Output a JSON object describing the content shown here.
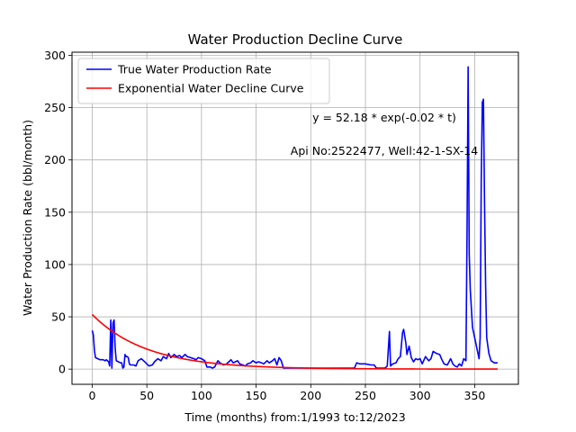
{
  "chart_data": {
    "type": "line",
    "title": "Water Production Decline Curve",
    "xlabel": "Time (months) from:1/1993 to:12/2023",
    "ylabel": "Water Production Rate (bbl/month)",
    "xlim": [
      -18.5,
      390
    ],
    "ylim": [
      -14.5,
      303
    ],
    "xticks": [
      0,
      50,
      100,
      150,
      200,
      250,
      300,
      350
    ],
    "yticks": [
      0,
      50,
      100,
      150,
      200,
      250,
      300
    ],
    "grid": true,
    "legend_position": "top-left",
    "annotations": [
      "y = 52.18 * exp(-0.02 * t)",
      "Api No:2522477, Well:42-1-SX-14"
    ],
    "series": [
      {
        "name": "True Water Production Rate",
        "color": "#0000ff",
        "points": [
          [
            0,
            37
          ],
          [
            1,
            33
          ],
          [
            2,
            18
          ],
          [
            3,
            11
          ],
          [
            5,
            10
          ],
          [
            7,
            9
          ],
          [
            10,
            9
          ],
          [
            12,
            8
          ],
          [
            13,
            9
          ],
          [
            15,
            7
          ],
          [
            16,
            3
          ],
          [
            17,
            47
          ],
          [
            18,
            1
          ],
          [
            19,
            44
          ],
          [
            20,
            47
          ],
          [
            21,
            20
          ],
          [
            22,
            8
          ],
          [
            24,
            7
          ],
          [
            26,
            6
          ],
          [
            27,
            6
          ],
          [
            28,
            1
          ],
          [
            29,
            2
          ],
          [
            30,
            14
          ],
          [
            31,
            12
          ],
          [
            32,
            12
          ],
          [
            33,
            11
          ],
          [
            34,
            5
          ],
          [
            35,
            4
          ],
          [
            38,
            4
          ],
          [
            40,
            3
          ],
          [
            42,
            8
          ],
          [
            45,
            10
          ],
          [
            47,
            8
          ],
          [
            50,
            5
          ],
          [
            52,
            3
          ],
          [
            55,
            4
          ],
          [
            57,
            7
          ],
          [
            60,
            10
          ],
          [
            63,
            8
          ],
          [
            65,
            12
          ],
          [
            68,
            10
          ],
          [
            70,
            15
          ],
          [
            72,
            11
          ],
          [
            75,
            14
          ],
          [
            77,
            12
          ],
          [
            80,
            13
          ],
          [
            82,
            11
          ],
          [
            85,
            14
          ],
          [
            87,
            12
          ],
          [
            90,
            11
          ],
          [
            93,
            10
          ],
          [
            95,
            9
          ],
          [
            97,
            11
          ],
          [
            100,
            10
          ],
          [
            103,
            8
          ],
          [
            105,
            2
          ],
          [
            108,
            2
          ],
          [
            110,
            1
          ],
          [
            112,
            2
          ],
          [
            115,
            8
          ],
          [
            117,
            6
          ],
          [
            120,
            4
          ],
          [
            123,
            5
          ],
          [
            125,
            7
          ],
          [
            127,
            9
          ],
          [
            129,
            6
          ],
          [
            131,
            7
          ],
          [
            133,
            8
          ],
          [
            135,
            5
          ],
          [
            138,
            4
          ],
          [
            140,
            3
          ],
          [
            142,
            5
          ],
          [
            145,
            6
          ],
          [
            147,
            8
          ],
          [
            150,
            6
          ],
          [
            152,
            7
          ],
          [
            155,
            6
          ],
          [
            157,
            5
          ],
          [
            160,
            8
          ],
          [
            162,
            6
          ],
          [
            165,
            8
          ],
          [
            167,
            10
          ],
          [
            169,
            4
          ],
          [
            171,
            11
          ],
          [
            173,
            8
          ],
          [
            175,
            1
          ],
          [
            180,
            1
          ],
          [
            190,
            1
          ],
          [
            200,
            1
          ],
          [
            210,
            1
          ],
          [
            220,
            1
          ],
          [
            230,
            1
          ],
          [
            240,
            1
          ],
          [
            242,
            6
          ],
          [
            245,
            5
          ],
          [
            250,
            5
          ],
          [
            255,
            4
          ],
          [
            258,
            4
          ],
          [
            260,
            1
          ],
          [
            265,
            1
          ],
          [
            268,
            1
          ],
          [
            270,
            3
          ],
          [
            272,
            36
          ],
          [
            273,
            3
          ],
          [
            275,
            5
          ],
          [
            278,
            6
          ],
          [
            280,
            10
          ],
          [
            282,
            12
          ],
          [
            284,
            35
          ],
          [
            285,
            38
          ],
          [
            287,
            25
          ],
          [
            288,
            14
          ],
          [
            290,
            22
          ],
          [
            292,
            11
          ],
          [
            294,
            7
          ],
          [
            296,
            10
          ],
          [
            298,
            9
          ],
          [
            300,
            10
          ],
          [
            302,
            5
          ],
          [
            305,
            12
          ],
          [
            308,
            8
          ],
          [
            310,
            10
          ],
          [
            312,
            17
          ],
          [
            315,
            15
          ],
          [
            318,
            14
          ],
          [
            320,
            9
          ],
          [
            322,
            5
          ],
          [
            325,
            4
          ],
          [
            328,
            10
          ],
          [
            330,
            5
          ],
          [
            332,
            3
          ],
          [
            334,
            2
          ],
          [
            336,
            5
          ],
          [
            338,
            3
          ],
          [
            340,
            10
          ],
          [
            342,
            8
          ],
          [
            343,
            130
          ],
          [
            344,
            289
          ],
          [
            345,
            110
          ],
          [
            346,
            75
          ],
          [
            348,
            40
          ],
          [
            350,
            30
          ],
          [
            352,
            20
          ],
          [
            354,
            10
          ],
          [
            355,
            30
          ],
          [
            356,
            180
          ],
          [
            357,
            255
          ],
          [
            358,
            258
          ],
          [
            359,
            160
          ],
          [
            360,
            80
          ],
          [
            361,
            30
          ],
          [
            363,
            15
          ],
          [
            365,
            8
          ],
          [
            368,
            6
          ],
          [
            371,
            6
          ]
        ]
      },
      {
        "name": "Exponential Water Decline Curve",
        "color": "#ff0000",
        "function": {
          "a": 52.18,
          "b": -0.02,
          "t_start": 0,
          "t_end": 371
        }
      }
    ]
  }
}
